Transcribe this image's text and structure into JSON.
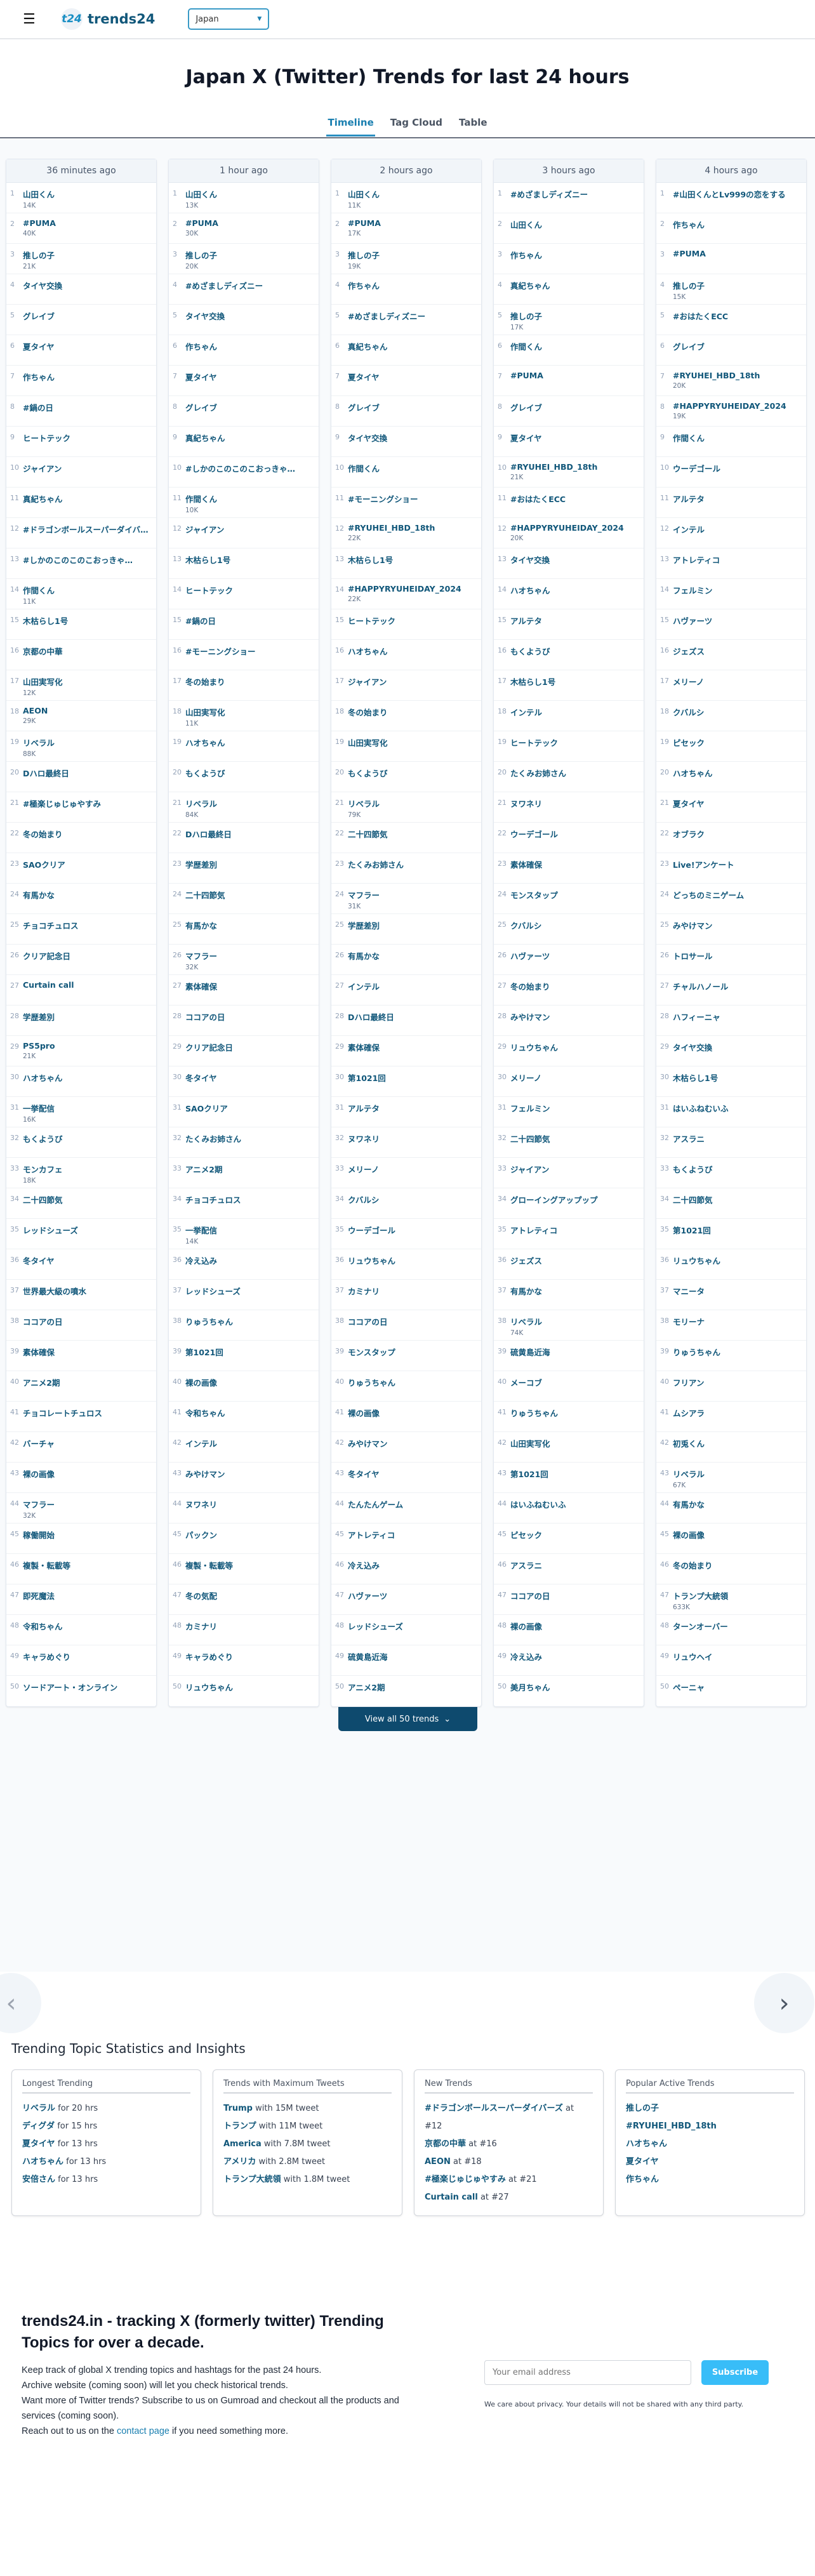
{
  "header": {
    "logo_badge": "t24",
    "logo_text": "trends24",
    "country": "Japan"
  },
  "page_title": "Japan X (Twitter) Trends for last 24 hours",
  "tabs": [
    "Timeline",
    "Tag Cloud",
    "Table"
  ],
  "active_tab": "Timeline",
  "columns": [
    {
      "time": "36 minutes ago",
      "trends": [
        [
          "山田くん",
          "14K"
        ],
        [
          "#PUMA",
          "40K"
        ],
        [
          "推しの子",
          "21K"
        ],
        [
          "タイヤ交換",
          ""
        ],
        [
          "グレイブ",
          ""
        ],
        [
          "夏タイヤ",
          ""
        ],
        [
          "作ちゃん",
          ""
        ],
        [
          "#鍋の日",
          ""
        ],
        [
          "ヒートテック",
          ""
        ],
        [
          "ジャイアン",
          ""
        ],
        [
          "真紀ちゃん",
          ""
        ],
        [
          "#ドラゴンボールスーパーダイバーズ",
          ""
        ],
        [
          "#しかのこのこのこおっきゃ…",
          ""
        ],
        [
          "作間くん",
          "11K"
        ],
        [
          "木枯らし1号",
          ""
        ],
        [
          "京都の中華",
          ""
        ],
        [
          "山田実写化",
          "12K"
        ],
        [
          "AEON",
          "29K"
        ],
        [
          "リベラル",
          "88K"
        ],
        [
          "Dハロ最終日",
          ""
        ],
        [
          "#極楽じゅじゅやすみ",
          ""
        ],
        [
          "冬の始まり",
          ""
        ],
        [
          "SAOクリア",
          ""
        ],
        [
          "有馬かな",
          ""
        ],
        [
          "チョコチュロス",
          ""
        ],
        [
          "クリア記念日",
          ""
        ],
        [
          "Curtain call",
          ""
        ],
        [
          "学歴差別",
          ""
        ],
        [
          "PS5pro",
          "21K"
        ],
        [
          "ハオちゃん",
          ""
        ],
        [
          "一挙配信",
          "16K"
        ],
        [
          "もくようび",
          ""
        ],
        [
          "モンカフェ",
          "18K"
        ],
        [
          "二十四節気",
          ""
        ],
        [
          "レッドシューズ",
          ""
        ],
        [
          "冬タイヤ",
          ""
        ],
        [
          "世界最大級の噴水",
          ""
        ],
        [
          "ココアの日",
          ""
        ],
        [
          "素体確保",
          ""
        ],
        [
          "アニメ2期",
          ""
        ],
        [
          "チョコレートチュロス",
          ""
        ],
        [
          "バーチャ",
          ""
        ],
        [
          "裸の画像",
          ""
        ],
        [
          "マフラー",
          "32K"
        ],
        [
          "稼働開始",
          ""
        ],
        [
          "複製・転載等",
          ""
        ],
        [
          "即死魔法",
          ""
        ],
        [
          "令和ちゃん",
          ""
        ],
        [
          "キャラめぐり",
          ""
        ],
        [
          "ソードアート・オンライン",
          ""
        ]
      ]
    },
    {
      "time": "1 hour ago",
      "trends": [
        [
          "山田くん",
          "13K"
        ],
        [
          "#PUMA",
          "30K"
        ],
        [
          "推しの子",
          "20K"
        ],
        [
          "#めざましディズニー",
          ""
        ],
        [
          "タイヤ交換",
          ""
        ],
        [
          "作ちゃん",
          ""
        ],
        [
          "夏タイヤ",
          ""
        ],
        [
          "グレイブ",
          ""
        ],
        [
          "真紀ちゃん",
          ""
        ],
        [
          "#しかのこのこのこおっきゃ…",
          ""
        ],
        [
          "作間くん",
          "10K"
        ],
        [
          "ジャイアン",
          ""
        ],
        [
          "木枯らし1号",
          ""
        ],
        [
          "ヒートテック",
          ""
        ],
        [
          "#鍋の日",
          ""
        ],
        [
          "#モーニングショー",
          ""
        ],
        [
          "冬の始まり",
          ""
        ],
        [
          "山田実写化",
          "11K"
        ],
        [
          "ハオちゃん",
          ""
        ],
        [
          "もくようび",
          ""
        ],
        [
          "リベラル",
          "84K"
        ],
        [
          "Dハロ最終日",
          ""
        ],
        [
          "学歴差別",
          ""
        ],
        [
          "二十四節気",
          ""
        ],
        [
          "有馬かな",
          ""
        ],
        [
          "マフラー",
          "32K"
        ],
        [
          "素体確保",
          ""
        ],
        [
          "ココアの日",
          ""
        ],
        [
          "クリア記念日",
          ""
        ],
        [
          "冬タイヤ",
          ""
        ],
        [
          "SAOクリア",
          ""
        ],
        [
          "たくみお姉さん",
          ""
        ],
        [
          "アニメ2期",
          ""
        ],
        [
          "チョコチュロス",
          ""
        ],
        [
          "一挙配信",
          "14K"
        ],
        [
          "冷え込み",
          ""
        ],
        [
          "レッドシューズ",
          ""
        ],
        [
          "りゅうちゃん",
          ""
        ],
        [
          "第1021回",
          ""
        ],
        [
          "裸の画像",
          ""
        ],
        [
          "令和ちゃん",
          ""
        ],
        [
          "インテル",
          ""
        ],
        [
          "みやけマン",
          ""
        ],
        [
          "ヌワネリ",
          ""
        ],
        [
          "パックン",
          ""
        ],
        [
          "複製・転載等",
          ""
        ],
        [
          "冬の気配",
          ""
        ],
        [
          "カミナリ",
          ""
        ],
        [
          "キャラめぐり",
          ""
        ],
        [
          "リュウちゃん",
          ""
        ]
      ]
    },
    {
      "time": "2 hours ago",
      "trends": [
        [
          "山田くん",
          "11K"
        ],
        [
          "#PUMA",
          "17K"
        ],
        [
          "推しの子",
          "19K"
        ],
        [
          "作ちゃん",
          ""
        ],
        [
          "#めざましディズニー",
          ""
        ],
        [
          "真紀ちゃん",
          ""
        ],
        [
          "夏タイヤ",
          ""
        ],
        [
          "グレイブ",
          ""
        ],
        [
          "タイヤ交換",
          ""
        ],
        [
          "作間くん",
          ""
        ],
        [
          "#モーニングショー",
          ""
        ],
        [
          "#RYUHEI_HBD_18th",
          "22K"
        ],
        [
          "木枯らし1号",
          ""
        ],
        [
          "#HAPPYRYUHEIDAY_2024",
          "22K"
        ],
        [
          "ヒートテック",
          ""
        ],
        [
          "ハオちゃん",
          ""
        ],
        [
          "ジャイアン",
          ""
        ],
        [
          "冬の始まり",
          ""
        ],
        [
          "山田実写化",
          ""
        ],
        [
          "もくようび",
          ""
        ],
        [
          "リベラル",
          "79K"
        ],
        [
          "二十四節気",
          ""
        ],
        [
          "たくみお姉さん",
          ""
        ],
        [
          "マフラー",
          "31K"
        ],
        [
          "学歴差別",
          ""
        ],
        [
          "有馬かな",
          ""
        ],
        [
          "インテル",
          ""
        ],
        [
          "Dハロ最終日",
          ""
        ],
        [
          "素体確保",
          ""
        ],
        [
          "第1021回",
          ""
        ],
        [
          "アルテタ",
          ""
        ],
        [
          "ヌワネリ",
          ""
        ],
        [
          "メリーノ",
          ""
        ],
        [
          "クバルシ",
          ""
        ],
        [
          "ウーデゴール",
          ""
        ],
        [
          "リュウちゃん",
          ""
        ],
        [
          "カミナリ",
          ""
        ],
        [
          "ココアの日",
          ""
        ],
        [
          "モンスタップ",
          ""
        ],
        [
          "りゅうちゃん",
          ""
        ],
        [
          "裸の画像",
          ""
        ],
        [
          "みやけマン",
          ""
        ],
        [
          "冬タイヤ",
          ""
        ],
        [
          "たんたんゲーム",
          ""
        ],
        [
          "アトレティコ",
          ""
        ],
        [
          "冷え込み",
          ""
        ],
        [
          "ハヴァーツ",
          ""
        ],
        [
          "レッドシューズ",
          ""
        ],
        [
          "硫黄島近海",
          ""
        ],
        [
          "アニメ2期",
          ""
        ]
      ]
    },
    {
      "time": "3 hours ago",
      "trends": [
        [
          "#めざましディズニー",
          ""
        ],
        [
          "山田くん",
          ""
        ],
        [
          "作ちゃん",
          ""
        ],
        [
          "真紀ちゃん",
          ""
        ],
        [
          "推しの子",
          "17K"
        ],
        [
          "作間くん",
          ""
        ],
        [
          "#PUMA",
          ""
        ],
        [
          "グレイブ",
          ""
        ],
        [
          "夏タイヤ",
          ""
        ],
        [
          "#RYUHEI_HBD_18th",
          "21K"
        ],
        [
          "#おはたくECC",
          ""
        ],
        [
          "#HAPPYRYUHEIDAY_2024",
          "20K"
        ],
        [
          "タイヤ交換",
          ""
        ],
        [
          "ハオちゃん",
          ""
        ],
        [
          "アルテタ",
          ""
        ],
        [
          "もくようび",
          ""
        ],
        [
          "木枯らし1号",
          ""
        ],
        [
          "インテル",
          ""
        ],
        [
          "ヒートテック",
          ""
        ],
        [
          "たくみお姉さん",
          ""
        ],
        [
          "ヌワネリ",
          ""
        ],
        [
          "ウーデゴール",
          ""
        ],
        [
          "素体確保",
          ""
        ],
        [
          "モンスタップ",
          ""
        ],
        [
          "クバルシ",
          ""
        ],
        [
          "ハヴァーツ",
          ""
        ],
        [
          "冬の始まり",
          ""
        ],
        [
          "みやけマン",
          ""
        ],
        [
          "リュウちゃん",
          ""
        ],
        [
          "メリーノ",
          ""
        ],
        [
          "フェルミン",
          ""
        ],
        [
          "二十四節気",
          ""
        ],
        [
          "ジャイアン",
          ""
        ],
        [
          "グローイングアップップ",
          ""
        ],
        [
          "アトレティコ",
          ""
        ],
        [
          "ジェズス",
          ""
        ],
        [
          "有馬かな",
          ""
        ],
        [
          "リベラル",
          "74K"
        ],
        [
          "硫黄島近海",
          ""
        ],
        [
          "メーコブ",
          ""
        ],
        [
          "りゅうちゃん",
          ""
        ],
        [
          "山田実写化",
          ""
        ],
        [
          "第1021回",
          ""
        ],
        [
          "はいふねむいふ",
          ""
        ],
        [
          "ピセック",
          ""
        ],
        [
          "アスラニ",
          ""
        ],
        [
          "ココアの日",
          ""
        ],
        [
          "裸の画像",
          ""
        ],
        [
          "冷え込み",
          ""
        ],
        [
          "美月ちゃん",
          ""
        ]
      ]
    },
    {
      "time": "4 hours ago",
      "trends": [
        [
          "#山田くんとLv999の恋をする",
          ""
        ],
        [
          "作ちゃん",
          ""
        ],
        [
          "#PUMA",
          ""
        ],
        [
          "推しの子",
          "15K"
        ],
        [
          "#おはたくECC",
          ""
        ],
        [
          "グレイブ",
          ""
        ],
        [
          "#RYUHEI_HBD_18th",
          "20K"
        ],
        [
          "#HAPPYRYUHEIDAY_2024",
          "19K"
        ],
        [
          "作間くん",
          ""
        ],
        [
          "ウーデゴール",
          ""
        ],
        [
          "アルテタ",
          ""
        ],
        [
          "インテル",
          ""
        ],
        [
          "アトレティコ",
          ""
        ],
        [
          "フェルミン",
          ""
        ],
        [
          "ハヴァーツ",
          ""
        ],
        [
          "ジェズス",
          ""
        ],
        [
          "メリーノ",
          ""
        ],
        [
          "クバルシ",
          ""
        ],
        [
          "ピセック",
          ""
        ],
        [
          "ハオちゃん",
          ""
        ],
        [
          "夏タイヤ",
          ""
        ],
        [
          "オブラク",
          ""
        ],
        [
          "Live!アンケート",
          ""
        ],
        [
          "どっちのミニゲーム",
          ""
        ],
        [
          "みやけマン",
          ""
        ],
        [
          "トロサール",
          ""
        ],
        [
          "チャルハノール",
          ""
        ],
        [
          "ハフィーニャ",
          ""
        ],
        [
          "タイヤ交換",
          ""
        ],
        [
          "木枯らし1号",
          ""
        ],
        [
          "はいふねむいふ",
          ""
        ],
        [
          "アスラニ",
          ""
        ],
        [
          "もくようび",
          ""
        ],
        [
          "二十四節気",
          ""
        ],
        [
          "第1021回",
          ""
        ],
        [
          "リュウちゃん",
          ""
        ],
        [
          "マニータ",
          ""
        ],
        [
          "モリーナ",
          ""
        ],
        [
          "りゅうちゃん",
          ""
        ],
        [
          "フリアン",
          ""
        ],
        [
          "ムシアラ",
          ""
        ],
        [
          "初兎くん",
          ""
        ],
        [
          "リベラル",
          "67K"
        ],
        [
          "有馬かな",
          ""
        ],
        [
          "裸の画像",
          ""
        ],
        [
          "冬の始まり",
          ""
        ],
        [
          "トランプ大統領",
          "633K"
        ],
        [
          "ターンオーバー",
          ""
        ],
        [
          "リュウヘイ",
          ""
        ],
        [
          "ペーニャ",
          ""
        ]
      ]
    }
  ],
  "view_all": "View all 50 trends",
  "stats": {
    "title": "Trending Topic Statistics and Insights",
    "cards": [
      {
        "title": "Longest Trending",
        "items": [
          [
            "リベラル",
            " for 20 hrs"
          ],
          [
            "ディグダ",
            " for 15 hrs"
          ],
          [
            "夏タイヤ",
            " for 13 hrs"
          ],
          [
            "ハオちゃん",
            " for 13 hrs"
          ],
          [
            "安倍さん",
            " for 13 hrs"
          ]
        ]
      },
      {
        "title": "Trends with Maximum Tweets",
        "items": [
          [
            "Trump",
            " with 15M tweet"
          ],
          [
            "トランプ",
            " with 11M tweet"
          ],
          [
            "America",
            " with 7.8M tweet"
          ],
          [
            "アメリカ",
            " with 2.8M tweet"
          ],
          [
            "トランプ大統領",
            " with 1.8M tweet"
          ]
        ]
      },
      {
        "title": "New Trends",
        "items": [
          [
            "#ドラゴンボールスーパーダイバーズ",
            " at #12"
          ],
          [
            "京都の中華",
            " at #16"
          ],
          [
            "AEON",
            " at #18"
          ],
          [
            "#極楽じゅじゅやすみ",
            " at #21"
          ],
          [
            "Curtain call",
            " at #27"
          ]
        ]
      },
      {
        "title": "Popular Active Trends",
        "items": [
          [
            "推しの子",
            ""
          ],
          [
            "#RYUHEI_HBD_18th",
            ""
          ],
          [
            "ハオちゃん",
            ""
          ],
          [
            "夏タイヤ",
            ""
          ],
          [
            "作ちゃん",
            ""
          ]
        ]
      }
    ]
  },
  "footer": {
    "heading": "trends24.in - tracking X (formerly twitter) Trending Topics for over a decade.",
    "p1": "Keep track of global X trending topics and hashtags for the past 24 hours.",
    "p2": "Archive website (coming soon) will let you check historical trends.",
    "p3": "Want more of Twitter trends? Subscribe to us on Gumroad and checkout all the products and services (coming soon).",
    "p4_before": "Reach out to us on the ",
    "p4_link": "contact page",
    "p4_after": " if you need something more.",
    "email_placeholder": "Your email address",
    "subscribe": "Subscribe",
    "privacy": "We care about privacy. Your details will not be shared with any third party."
  },
  "colors": {
    "link": "#11577a",
    "accent": "#1a7fb0",
    "button": "#0e4a6e",
    "subscribe": "#38bdf8"
  }
}
